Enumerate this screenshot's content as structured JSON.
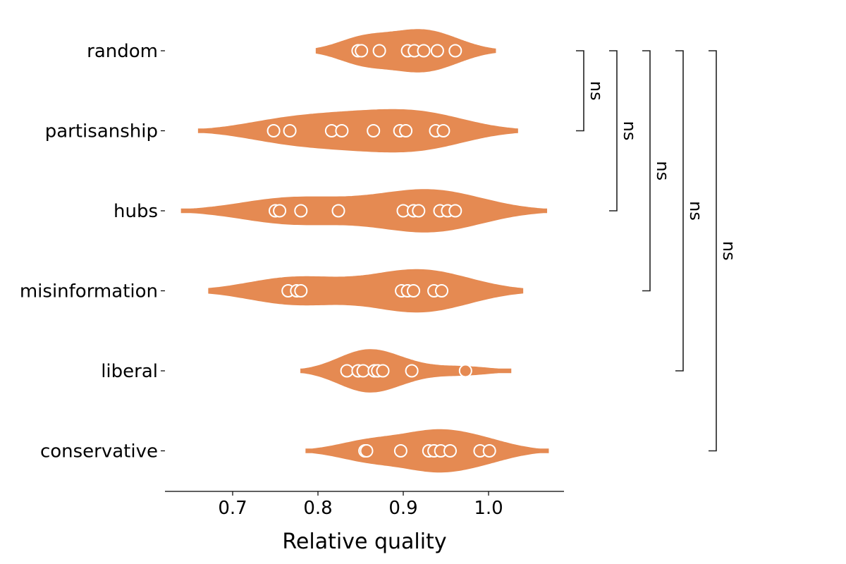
{
  "chart_data": {
    "type": "violin",
    "orientation": "horizontal",
    "xlabel": "Relative quality",
    "ylabel": "",
    "xlim": [
      0.62,
      1.085
    ],
    "xticks": [
      0.7,
      0.8,
      0.9,
      1.0
    ],
    "xtick_labels": [
      "0.7",
      "0.8",
      "0.9",
      "1.0"
    ],
    "grid": false,
    "colors": {
      "violin": "#E58A52",
      "point_fill": "#E58A52",
      "point_stroke": "#FFFFFF",
      "axis": "#000000",
      "bracket": "#222222"
    },
    "categories": [
      "random",
      "partisanship",
      "hubs",
      "misinformation",
      "liberal",
      "conservative"
    ],
    "series": [
      {
        "category": "random",
        "points": [
          0.847,
          0.851,
          0.872,
          0.905,
          0.913,
          0.924,
          0.94,
          0.961
        ],
        "violin_range": [
          0.798,
          1.008
        ]
      },
      {
        "category": "partisanship",
        "points": [
          0.748,
          0.767,
          0.816,
          0.828,
          0.865,
          0.896,
          0.903,
          0.938,
          0.947
        ],
        "violin_range": [
          0.66,
          1.034
        ]
      },
      {
        "category": "hubs",
        "points": [
          0.75,
          0.755,
          0.78,
          0.824,
          0.9,
          0.912,
          0.918,
          0.943,
          0.952,
          0.961
        ],
        "violin_range": [
          0.64,
          1.068
        ]
      },
      {
        "category": "misinformation",
        "points": [
          0.765,
          0.775,
          0.78,
          0.898,
          0.905,
          0.912,
          0.936,
          0.945
        ],
        "violin_range": [
          0.672,
          1.04
        ]
      },
      {
        "category": "liberal",
        "points": [
          0.834,
          0.847,
          0.853,
          0.866,
          0.87,
          0.876,
          0.91,
          0.973
        ],
        "violin_range": [
          0.78,
          1.026
        ]
      },
      {
        "category": "conservative",
        "points": [
          0.855,
          0.857,
          0.897,
          0.93,
          0.936,
          0.944,
          0.955,
          0.99,
          1.001
        ],
        "violin_range": [
          0.786,
          1.07
        ]
      }
    ],
    "comparisons": [
      {
        "from": "random",
        "to": "partisanship",
        "label": "ns"
      },
      {
        "from": "random",
        "to": "hubs",
        "label": "ns"
      },
      {
        "from": "random",
        "to": "misinformation",
        "label": "ns"
      },
      {
        "from": "random",
        "to": "liberal",
        "label": "ns"
      },
      {
        "from": "random",
        "to": "conservative",
        "label": "ns"
      }
    ]
  }
}
